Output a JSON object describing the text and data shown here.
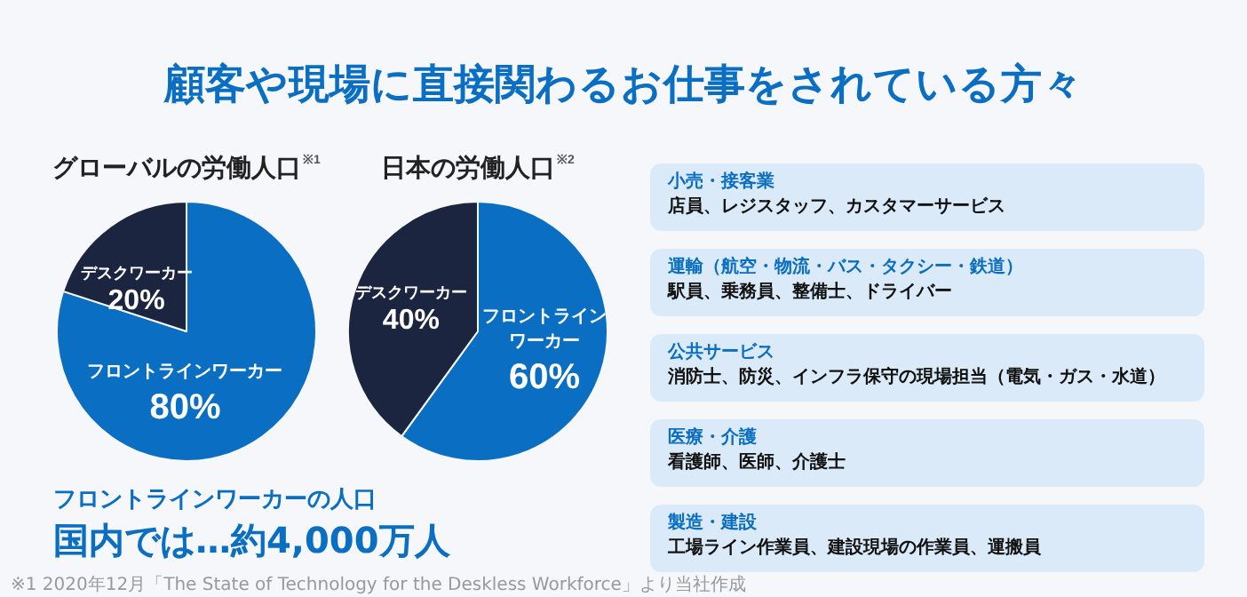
{
  "chart_data": [
    {
      "type": "other",
      "title": "顧客や現場に直接関わるお仕事をされている方々"
    },
    {
      "type": "pie",
      "title": "グローバルの労働人口$^{※1}$",
      "categories": [
        "フロントラインワーカー",
        "デスクワーカー"
      ],
      "values": [
        80,
        20
      ],
      "colors": [
        "#0a6fc2",
        "#1c2540"
      ],
      "value_labels": [
        "80%",
        "20%"
      ]
    },
    {
      "type": "pie",
      "title": "日本の労働人口$^{※2}$",
      "categories": [
        "フロントラインワーカー",
        "デスクワーカー"
      ],
      "values": [
        60,
        40
      ],
      "colors": [
        "#0a6fc2",
        "#1c2540"
      ],
      "value_labels": [
        "60%",
        "40%"
      ]
    },
    {
      "type": "other",
      "annotations": [
        "フロントラインワーカーの人口",
        "国内では…約4,000万人",
        "※1 2020年12月「The State of Technology for the Deskless Workforce」より当社作成"
      ]
    },
    {
      "type": "other",
      "annotations": [
        "小売・接客業",
        "店員、レジスタッフ、カスタマーサービス",
        "運輸（航空・物流・バス・タクシー・鉄道）",
        "駅員、乗務員、整備士、ドライバー",
        "公共サービス",
        "消防士、防災、インフラ保守の現場担当（電気・ガス・水道）",
        "医療・介護",
        "看護師、医師、介護士",
        "製造・建設",
        "工場ライン作業員、建設現場の作業員、運搬員"
      ]
    }
  ]
}
